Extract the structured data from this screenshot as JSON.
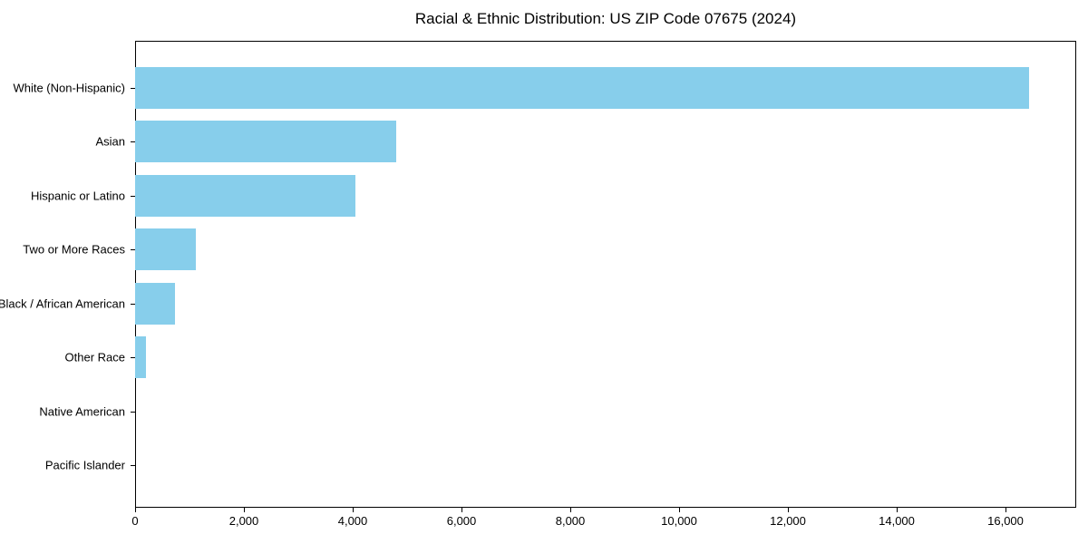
{
  "chart_data": {
    "type": "bar",
    "orientation": "horizontal",
    "title": "Racial & Ethnic Distribution: US ZIP Code 07675 (2024)",
    "categories": [
      "White (Non-Hispanic)",
      "Asian",
      "Hispanic or Latino",
      "Two or More Races",
      "Black / African American",
      "Other Race",
      "Native American",
      "Pacific Islander"
    ],
    "values": [
      16430,
      4800,
      4050,
      1110,
      730,
      200,
      0,
      0
    ],
    "xlabel": "",
    "ylabel": "",
    "xlim": [
      0,
      17300
    ],
    "x_ticks": [
      0,
      2000,
      4000,
      6000,
      8000,
      10000,
      12000,
      14000,
      16000
    ],
    "x_tick_labels": [
      "0",
      "2,000",
      "4,000",
      "6,000",
      "8,000",
      "10,000",
      "12,000",
      "14,000",
      "16,000"
    ],
    "bar_color": "#87CEEB",
    "axis_color": "#000000",
    "text_color": "#000000",
    "grid": false,
    "legend_position": "none"
  }
}
